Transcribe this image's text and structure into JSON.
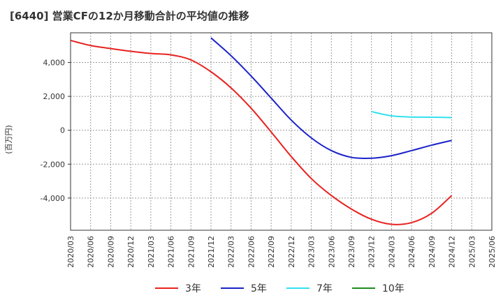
{
  "chart_data": {
    "type": "line",
    "title": "[6440]  営業CFの12か月移動合計の平均値の推移",
    "ylabel": "(百万円)",
    "xlabel": "",
    "x_ticks": [
      "2020/03",
      "2020/06",
      "2020/09",
      "2020/12",
      "2021/03",
      "2021/06",
      "2021/09",
      "2021/12",
      "2022/03",
      "2022/06",
      "2022/09",
      "2022/12",
      "2023/03",
      "2023/06",
      "2023/09",
      "2023/12",
      "2024/03",
      "2024/06",
      "2024/09",
      "2024/12",
      "2025/03",
      "2025/06"
    ],
    "y_ticks": [
      4000,
      2000,
      0,
      -2000,
      -4000
    ],
    "y_tick_labels": [
      "4,000",
      "2,000",
      "0",
      "-2,000",
      "-4,000"
    ],
    "ylim": [
      -5900,
      5750
    ],
    "grid": true,
    "legend_position": "bottom",
    "series": [
      {
        "name": "3年",
        "color": "#e8221f",
        "x": [
          "2020/03",
          "2020/06",
          "2020/09",
          "2020/12",
          "2021/03",
          "2021/06",
          "2021/09",
          "2021/12",
          "2022/03",
          "2022/06",
          "2022/09",
          "2022/12",
          "2023/03",
          "2023/06",
          "2023/09",
          "2023/12",
          "2024/03",
          "2024/06",
          "2024/09",
          "2024/12"
        ],
        "values": [
          5300,
          5000,
          4820,
          4660,
          4530,
          4450,
          4150,
          3450,
          2500,
          1300,
          -100,
          -1550,
          -2850,
          -3850,
          -4650,
          -5250,
          -5550,
          -5450,
          -4900,
          -3850
        ]
      },
      {
        "name": "5年",
        "color": "#1b22c8",
        "x": [
          "2021/12",
          "2022/03",
          "2022/06",
          "2022/09",
          "2022/12",
          "2023/03",
          "2023/06",
          "2023/09",
          "2023/12",
          "2024/03",
          "2024/06",
          "2024/09",
          "2024/12"
        ],
        "values": [
          5450,
          4400,
          3200,
          1900,
          600,
          -450,
          -1200,
          -1600,
          -1650,
          -1500,
          -1200,
          -880,
          -600
        ]
      },
      {
        "name": "7年",
        "color": "#33e0f0",
        "x": [
          "2023/12",
          "2024/03",
          "2024/06",
          "2024/09",
          "2024/12"
        ],
        "values": [
          1100,
          850,
          780,
          770,
          750
        ]
      },
      {
        "name": "10年",
        "color": "#1f8a1f",
        "x": [],
        "values": []
      }
    ]
  }
}
